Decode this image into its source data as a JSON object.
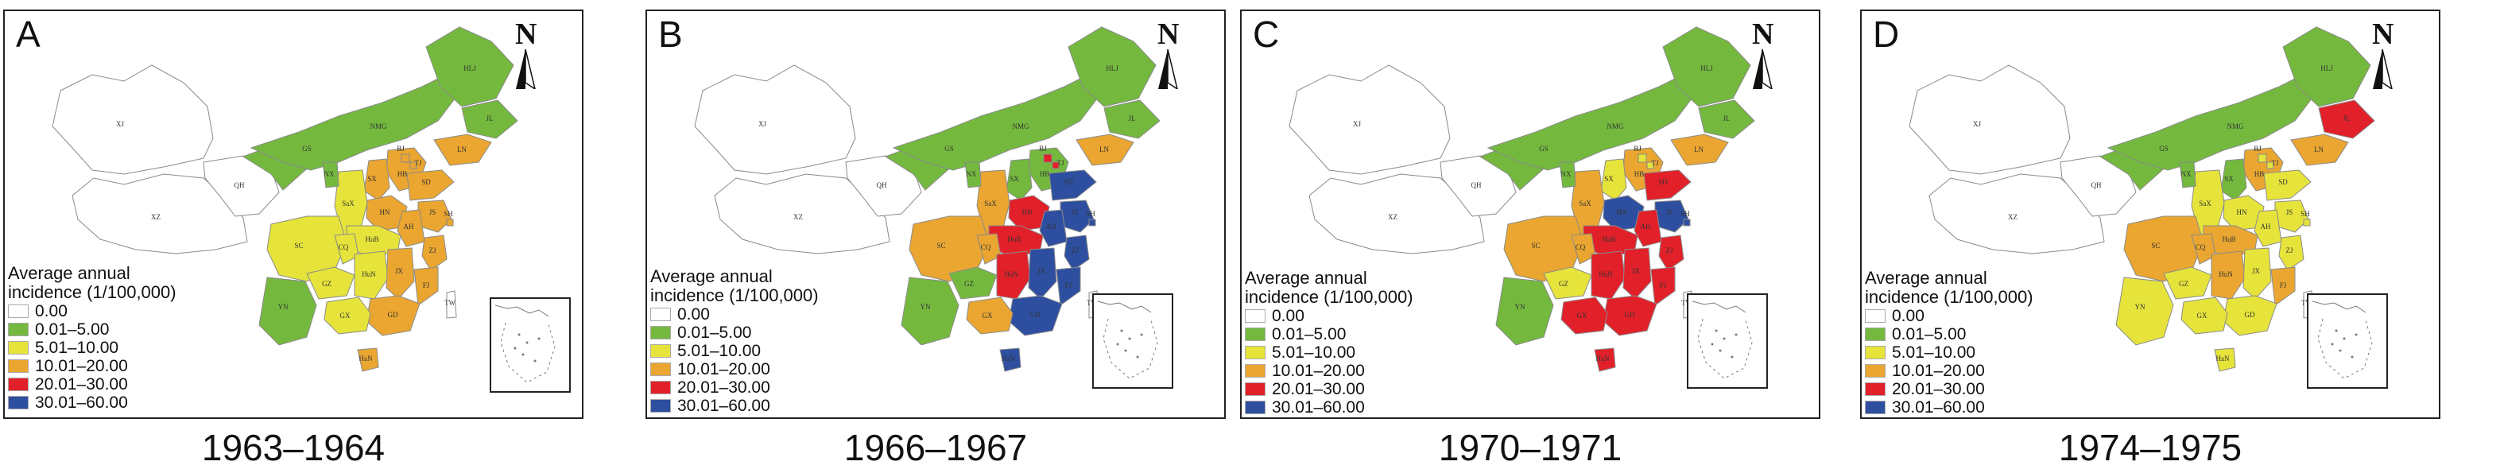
{
  "legend": {
    "title_line1": "Average annual",
    "title_line2": "incidence (1/100,000)",
    "items": [
      {
        "label": "0.00",
        "color": "#ffffff"
      },
      {
        "label": "0.01–5.00",
        "color": "#74b93e"
      },
      {
        "label": "5.01–10.00",
        "color": "#e6e43b"
      },
      {
        "label": "10.01–20.00",
        "color": "#eaa631"
      },
      {
        "label": "20.01–30.00",
        "color": "#e2202a"
      },
      {
        "label": "30.01–60.00",
        "color": "#2e4fa0"
      }
    ]
  },
  "north_label": "N",
  "provinces": [
    "XJ",
    "XZ",
    "QH",
    "GS",
    "NMG",
    "HLJ",
    "JL",
    "LN",
    "HB",
    "BJ",
    "TJ",
    "SX",
    "SaX",
    "NX",
    "HN",
    "SD",
    "JS",
    "AH",
    "HuB",
    "SC",
    "CQ",
    "GZ",
    "YN",
    "HuN",
    "JX",
    "ZJ",
    "FJ",
    "GD",
    "GX",
    "HaN",
    "TW",
    "SH"
  ],
  "panels": [
    {
      "letter": "A",
      "year": "1963–1964",
      "colors": {
        "XJ": 0,
        "XZ": 0,
        "QH": 0,
        "GS": 1,
        "NMG": 1,
        "HLJ": 1,
        "JL": 1,
        "LN": 3,
        "HB": 3,
        "BJ": 3,
        "TJ": 3,
        "SX": 3,
        "SaX": 2,
        "NX": 1,
        "HN": 3,
        "SD": 3,
        "JS": 3,
        "AH": 3,
        "HuB": 2,
        "SC": 2,
        "CQ": 2,
        "GZ": 2,
        "YN": 1,
        "HuN": 2,
        "JX": 3,
        "ZJ": 3,
        "FJ": 3,
        "GD": 3,
        "GX": 2,
        "HaN": 3,
        "TW": 0,
        "SH": 3
      }
    },
    {
      "letter": "B",
      "year": "1966–1967",
      "colors": {
        "XJ": 0,
        "XZ": 0,
        "QH": 0,
        "GS": 1,
        "NMG": 1,
        "HLJ": 1,
        "JL": 1,
        "LN": 3,
        "HB": 1,
        "BJ": 4,
        "TJ": 4,
        "SX": 1,
        "SaX": 3,
        "NX": 1,
        "HN": 4,
        "SD": 5,
        "JS": 5,
        "AH": 5,
        "HuB": 4,
        "SC": 3,
        "CQ": 3,
        "GZ": 1,
        "YN": 1,
        "HuN": 4,
        "JX": 5,
        "ZJ": 5,
        "FJ": 5,
        "GD": 5,
        "GX": 3,
        "HaN": 5,
        "TW": 0,
        "SH": 5
      }
    },
    {
      "letter": "C",
      "year": "1970–1971",
      "colors": {
        "XJ": 0,
        "XZ": 0,
        "QH": 0,
        "GS": 1,
        "NMG": 1,
        "HLJ": 1,
        "JL": 1,
        "LN": 3,
        "HB": 3,
        "BJ": 2,
        "TJ": 2,
        "SX": 2,
        "SaX": 3,
        "NX": 1,
        "HN": 5,
        "SD": 4,
        "JS": 5,
        "AH": 4,
        "HuB": 4,
        "SC": 3,
        "CQ": 3,
        "GZ": 2,
        "YN": 1,
        "HuN": 4,
        "JX": 4,
        "ZJ": 4,
        "FJ": 4,
        "GD": 4,
        "GX": 4,
        "HaN": 4,
        "TW": 0,
        "SH": 5
      }
    },
    {
      "letter": "D",
      "year": "1974–1975",
      "colors": {
        "XJ": 0,
        "XZ": 0,
        "QH": 0,
        "GS": 1,
        "NMG": 1,
        "HLJ": 1,
        "JL": 4,
        "LN": 3,
        "HB": 3,
        "BJ": 2,
        "TJ": 2,
        "SX": 1,
        "SaX": 2,
        "NX": 1,
        "HN": 2,
        "SD": 2,
        "JS": 2,
        "AH": 2,
        "HuB": 3,
        "SC": 3,
        "CQ": 3,
        "GZ": 2,
        "YN": 2,
        "HuN": 3,
        "JX": 2,
        "ZJ": 2,
        "FJ": 3,
        "GD": 2,
        "GX": 2,
        "HaN": 2,
        "TW": 0,
        "SH": 2
      }
    }
  ]
}
